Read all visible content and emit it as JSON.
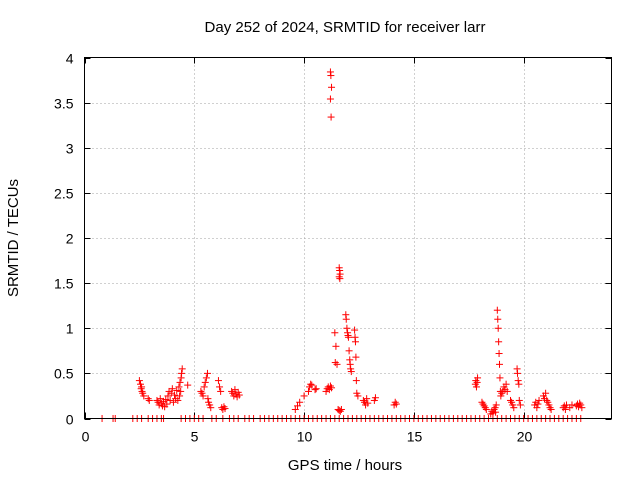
{
  "chart_data": {
    "type": "scatter",
    "title": "Day 252 of 2024, SRMTID for receiver larr",
    "xlabel": "GPS time / hours",
    "ylabel": "SRMTID / TECUs",
    "xlim": [
      0,
      24
    ],
    "ylim": [
      0,
      4
    ],
    "xticks": [
      0,
      5,
      10,
      15,
      20
    ],
    "yticks": [
      0,
      0.5,
      1,
      1.5,
      2,
      2.5,
      3,
      3.5,
      4
    ],
    "xtick_labels": [
      "0",
      "5",
      "10",
      "15",
      "20"
    ],
    "ytick_labels": [
      "0",
      "0.5",
      "1",
      "1.5",
      "2",
      "2.5",
      "3",
      "3.5",
      "4"
    ],
    "grid": true,
    "marker": "+",
    "color": "#ff0000",
    "series": [
      {
        "name": "SRMTID",
        "points": [
          [
            0.8,
            0
          ],
          [
            1.3,
            0
          ],
          [
            1.4,
            0
          ],
          [
            2.2,
            0
          ],
          [
            2.4,
            0
          ],
          [
            2.6,
            0
          ],
          [
            2.9,
            0
          ],
          [
            3.1,
            0
          ],
          [
            3.3,
            0
          ],
          [
            3.5,
            0
          ],
          [
            3.6,
            0
          ],
          [
            4.4,
            0
          ],
          [
            4.6,
            0
          ],
          [
            4.8,
            0
          ],
          [
            5.0,
            0
          ],
          [
            5.2,
            0
          ],
          [
            5.4,
            0
          ],
          [
            5.8,
            0
          ],
          [
            6.0,
            0
          ],
          [
            6.3,
            0
          ],
          [
            6.6,
            0
          ],
          [
            6.8,
            0
          ],
          [
            7.0,
            0
          ],
          [
            7.3,
            0
          ],
          [
            7.5,
            0
          ],
          [
            7.7,
            0
          ],
          [
            8.0,
            0
          ],
          [
            8.2,
            0
          ],
          [
            8.4,
            0
          ],
          [
            8.6,
            0
          ],
          [
            8.8,
            0
          ],
          [
            9.0,
            0
          ],
          [
            9.2,
            0
          ],
          [
            9.4,
            0
          ],
          [
            9.6,
            0
          ],
          [
            9.8,
            0
          ],
          [
            10.0,
            0
          ],
          [
            10.2,
            0
          ],
          [
            10.4,
            0
          ],
          [
            10.6,
            0
          ],
          [
            10.8,
            0
          ],
          [
            11.0,
            0
          ],
          [
            11.2,
            0
          ],
          [
            11.4,
            0
          ],
          [
            11.6,
            0
          ],
          [
            11.8,
            0
          ],
          [
            12.0,
            0
          ],
          [
            12.2,
            0
          ],
          [
            12.4,
            0
          ],
          [
            12.6,
            0
          ],
          [
            12.8,
            0
          ],
          [
            13.0,
            0
          ],
          [
            13.2,
            0
          ],
          [
            13.4,
            0
          ],
          [
            13.6,
            0
          ],
          [
            13.8,
            0
          ],
          [
            14.0,
            0
          ],
          [
            14.2,
            0
          ],
          [
            14.4,
            0
          ],
          [
            14.6,
            0
          ],
          [
            14.8,
            0
          ],
          [
            15.0,
            0
          ],
          [
            15.2,
            0
          ],
          [
            15.4,
            0
          ],
          [
            15.6,
            0
          ],
          [
            15.8,
            0
          ],
          [
            16.0,
            0
          ],
          [
            16.2,
            0
          ],
          [
            16.4,
            0
          ],
          [
            16.6,
            0
          ],
          [
            16.8,
            0
          ],
          [
            17.0,
            0
          ],
          [
            17.2,
            0
          ],
          [
            17.4,
            0
          ],
          [
            17.6,
            0
          ],
          [
            17.8,
            0
          ],
          [
            18.0,
            0
          ],
          [
            18.2,
            0
          ],
          [
            18.4,
            0
          ],
          [
            18.6,
            0
          ],
          [
            18.8,
            0
          ],
          [
            19.0,
            0
          ],
          [
            19.2,
            0
          ],
          [
            19.4,
            0
          ],
          [
            19.6,
            0
          ],
          [
            19.8,
            0
          ],
          [
            20.0,
            0
          ],
          [
            20.2,
            0
          ],
          [
            20.4,
            0
          ],
          [
            20.6,
            0
          ],
          [
            20.8,
            0
          ],
          [
            21.0,
            0
          ],
          [
            21.2,
            0
          ],
          [
            21.4,
            0
          ],
          [
            21.6,
            0
          ],
          [
            21.8,
            0
          ],
          [
            22.0,
            0
          ],
          [
            22.2,
            0
          ],
          [
            22.4,
            0
          ],
          [
            22.6,
            0
          ],
          [
            2.5,
            0.42
          ],
          [
            2.55,
            0.38
          ],
          [
            2.6,
            0.35
          ],
          [
            2.62,
            0.3
          ],
          [
            2.65,
            0.28
          ],
          [
            2.7,
            0.25
          ],
          [
            2.58,
            0.33
          ],
          [
            2.9,
            0.22
          ],
          [
            2.95,
            0.2
          ],
          [
            3.3,
            0.2
          ],
          [
            3.35,
            0.18
          ],
          [
            3.4,
            0.15
          ],
          [
            3.45,
            0.22
          ],
          [
            3.5,
            0.17
          ],
          [
            3.55,
            0.14
          ],
          [
            3.6,
            0.19
          ],
          [
            3.65,
            0.13
          ],
          [
            3.7,
            0.21
          ],
          [
            3.75,
            0.16
          ],
          [
            3.8,
            0.25
          ],
          [
            3.85,
            0.3
          ],
          [
            3.9,
            0.2
          ],
          [
            3.95,
            0.28
          ],
          [
            4.0,
            0.33
          ],
          [
            4.05,
            0.18
          ],
          [
            4.1,
            0.26
          ],
          [
            4.15,
            0.22
          ],
          [
            4.2,
            0.31
          ],
          [
            4.25,
            0.2
          ],
          [
            4.3,
            0.35
          ],
          [
            4.35,
            0.4
          ],
          [
            4.4,
            0.45
          ],
          [
            4.42,
            0.5
          ],
          [
            4.45,
            0.55
          ],
          [
            4.38,
            0.3
          ],
          [
            4.33,
            0.25
          ],
          [
            4.7,
            0.37
          ],
          [
            5.3,
            0.3
          ],
          [
            5.35,
            0.28
          ],
          [
            5.4,
            0.25
          ],
          [
            5.45,
            0.35
          ],
          [
            5.5,
            0.4
          ],
          [
            5.55,
            0.45
          ],
          [
            5.6,
            0.5
          ],
          [
            5.62,
            0.22
          ],
          [
            5.65,
            0.18
          ],
          [
            5.7,
            0.15
          ],
          [
            5.75,
            0.12
          ],
          [
            6.1,
            0.42
          ],
          [
            6.15,
            0.35
          ],
          [
            6.2,
            0.3
          ],
          [
            6.25,
            0.12
          ],
          [
            6.3,
            0.1
          ],
          [
            6.35,
            0.13
          ],
          [
            6.4,
            0.11
          ],
          [
            6.7,
            0.3
          ],
          [
            6.75,
            0.28
          ],
          [
            6.8,
            0.25
          ],
          [
            6.85,
            0.32
          ],
          [
            6.9,
            0.27
          ],
          [
            6.95,
            0.24
          ],
          [
            7.0,
            0.29
          ],
          [
            7.05,
            0.26
          ],
          [
            9.6,
            0.1
          ],
          [
            9.7,
            0.14
          ],
          [
            9.8,
            0.18
          ],
          [
            10.0,
            0.25
          ],
          [
            10.2,
            0.3
          ],
          [
            10.25,
            0.35
          ],
          [
            10.3,
            0.38
          ],
          [
            10.35,
            0.37
          ],
          [
            10.5,
            0.32
          ],
          [
            10.55,
            0.33
          ],
          [
            11.0,
            0.3
          ],
          [
            11.05,
            0.33
          ],
          [
            11.1,
            0.35
          ],
          [
            11.15,
            0.32
          ],
          [
            11.2,
            0.36
          ],
          [
            11.25,
            0.34
          ],
          [
            11.2,
            3.84
          ],
          [
            11.22,
            3.8
          ],
          [
            11.25,
            3.67
          ],
          [
            11.2,
            3.54
          ],
          [
            11.23,
            3.34
          ],
          [
            11.4,
            0.95
          ],
          [
            11.45,
            0.8
          ],
          [
            11.42,
            0.62
          ],
          [
            11.5,
            0.6
          ],
          [
            11.55,
            0.1
          ],
          [
            11.6,
            0.09
          ],
          [
            11.65,
            0.08
          ],
          [
            11.7,
            0.1
          ],
          [
            11.6,
            1.67
          ],
          [
            11.62,
            1.64
          ],
          [
            11.64,
            1.6
          ],
          [
            11.6,
            1.57
          ],
          [
            11.63,
            1.55
          ],
          [
            11.9,
            1.15
          ],
          [
            11.92,
            1.1
          ],
          [
            11.95,
            1.0
          ],
          [
            11.98,
            0.95
          ],
          [
            12.0,
            0.92
          ],
          [
            12.02,
            0.9
          ],
          [
            12.05,
            0.75
          ],
          [
            12.08,
            0.65
          ],
          [
            12.1,
            0.6
          ],
          [
            12.12,
            0.55
          ],
          [
            12.15,
            0.52
          ],
          [
            12.3,
            0.98
          ],
          [
            12.32,
            0.9
          ],
          [
            12.34,
            0.85
          ],
          [
            12.36,
            0.68
          ],
          [
            12.38,
            0.42
          ],
          [
            12.4,
            0.28
          ],
          [
            12.45,
            0.25
          ],
          [
            12.7,
            0.2
          ],
          [
            12.75,
            0.18
          ],
          [
            12.8,
            0.15
          ],
          [
            12.85,
            0.22
          ],
          [
            12.9,
            0.17
          ],
          [
            13.2,
            0.2
          ],
          [
            13.25,
            0.23
          ],
          [
            14.1,
            0.15
          ],
          [
            14.15,
            0.18
          ],
          [
            14.2,
            0.16
          ],
          [
            17.8,
            0.38
          ],
          [
            17.82,
            0.42
          ],
          [
            17.85,
            0.35
          ],
          [
            17.9,
            0.45
          ],
          [
            17.88,
            0.4
          ],
          [
            18.1,
            0.18
          ],
          [
            18.15,
            0.16
          ],
          [
            18.2,
            0.14
          ],
          [
            18.25,
            0.12
          ],
          [
            18.3,
            0.1
          ],
          [
            18.5,
            0.05
          ],
          [
            18.55,
            0.08
          ],
          [
            18.6,
            0.06
          ],
          [
            18.65,
            0.1
          ],
          [
            18.7,
            0.12
          ],
          [
            18.72,
            0.07
          ],
          [
            18.75,
            0.15
          ],
          [
            18.8,
            1.2
          ],
          [
            18.82,
            1.1
          ],
          [
            18.84,
            1.0
          ],
          [
            18.86,
            0.85
          ],
          [
            18.88,
            0.72
          ],
          [
            18.9,
            0.6
          ],
          [
            18.92,
            0.45
          ],
          [
            18.94,
            0.3
          ],
          [
            18.96,
            0.25
          ],
          [
            19.0,
            0.28
          ],
          [
            19.05,
            0.3
          ],
          [
            19.1,
            0.35
          ],
          [
            19.15,
            0.32
          ],
          [
            19.2,
            0.38
          ],
          [
            19.25,
            0.3
          ],
          [
            19.4,
            0.2
          ],
          [
            19.45,
            0.18
          ],
          [
            19.5,
            0.15
          ],
          [
            19.55,
            0.12
          ],
          [
            19.7,
            0.55
          ],
          [
            19.72,
            0.5
          ],
          [
            19.75,
            0.42
          ],
          [
            19.78,
            0.38
          ],
          [
            19.8,
            0.2
          ],
          [
            19.85,
            0.15
          ],
          [
            20.5,
            0.15
          ],
          [
            20.55,
            0.18
          ],
          [
            20.6,
            0.12
          ],
          [
            20.65,
            0.16
          ],
          [
            20.7,
            0.2
          ],
          [
            20.9,
            0.25
          ],
          [
            20.95,
            0.22
          ],
          [
            21.0,
            0.28
          ],
          [
            21.05,
            0.2
          ],
          [
            21.1,
            0.18
          ],
          [
            21.15,
            0.15
          ],
          [
            21.2,
            0.12
          ],
          [
            21.25,
            0.1
          ],
          [
            21.8,
            0.12
          ],
          [
            21.85,
            0.14
          ],
          [
            21.9,
            0.1
          ],
          [
            21.95,
            0.15
          ],
          [
            22.1,
            0.12
          ],
          [
            22.2,
            0.15
          ],
          [
            22.4,
            0.14
          ],
          [
            22.45,
            0.16
          ],
          [
            22.5,
            0.13
          ],
          [
            22.55,
            0.17
          ],
          [
            22.6,
            0.15
          ],
          [
            22.65,
            0.12
          ]
        ]
      }
    ]
  }
}
